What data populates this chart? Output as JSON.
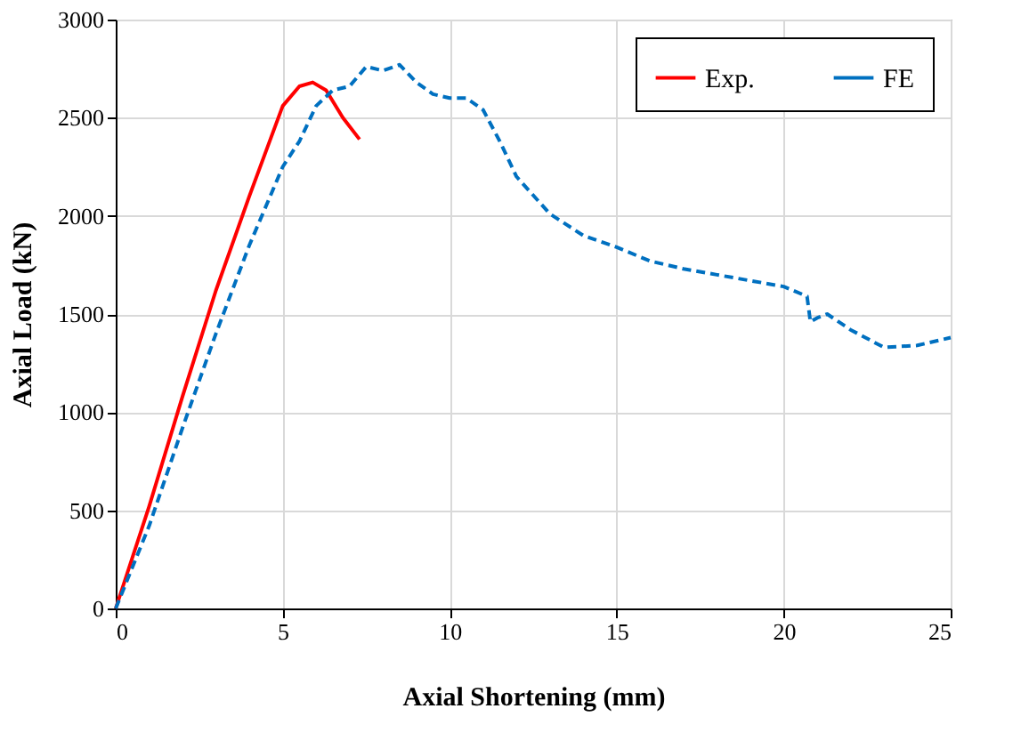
{
  "chart_data": {
    "type": "line",
    "xlabel": "Axial Shortening  (mm)",
    "ylabel": "Axial Load (kN)",
    "xlim": [
      0,
      25
    ],
    "xticks": [
      0,
      5,
      10,
      15,
      20,
      25
    ],
    "ylim": [
      0,
      3000
    ],
    "yticks": [
      0,
      500,
      1000,
      1500,
      2000,
      2500,
      3000
    ],
    "grid": true,
    "legend": "top right",
    "series": [
      {
        "name": "Exp.",
        "color": "#ff0000",
        "line_style": "solid",
        "x": [
          0,
          1,
          2,
          3,
          4,
          5,
          5.5,
          5.9,
          6.3,
          6.8,
          7.3
        ],
        "values": [
          0,
          520,
          1080,
          1620,
          2100,
          2560,
          2660,
          2680,
          2640,
          2500,
          2390
        ]
      },
      {
        "name": "FE",
        "color": "#0070c0",
        "line_style": "dashed",
        "x": [
          0,
          1,
          2,
          3,
          4,
          5,
          5.5,
          6,
          6.5,
          7,
          7.5,
          8,
          8.5,
          9,
          9.5,
          10,
          10.5,
          11,
          11.5,
          12,
          13,
          14,
          15,
          16,
          17,
          18,
          19,
          20,
          20.7,
          20.8,
          21,
          21.3,
          22,
          23,
          24,
          25
        ],
        "values": [
          0,
          420,
          920,
          1400,
          1850,
          2250,
          2380,
          2560,
          2640,
          2660,
          2760,
          2740,
          2770,
          2680,
          2620,
          2600,
          2600,
          2540,
          2380,
          2200,
          2010,
          1900,
          1840,
          1770,
          1730,
          1700,
          1670,
          1640,
          1590,
          1460,
          1480,
          1500,
          1420,
          1330,
          1340,
          1380
        ]
      }
    ]
  }
}
